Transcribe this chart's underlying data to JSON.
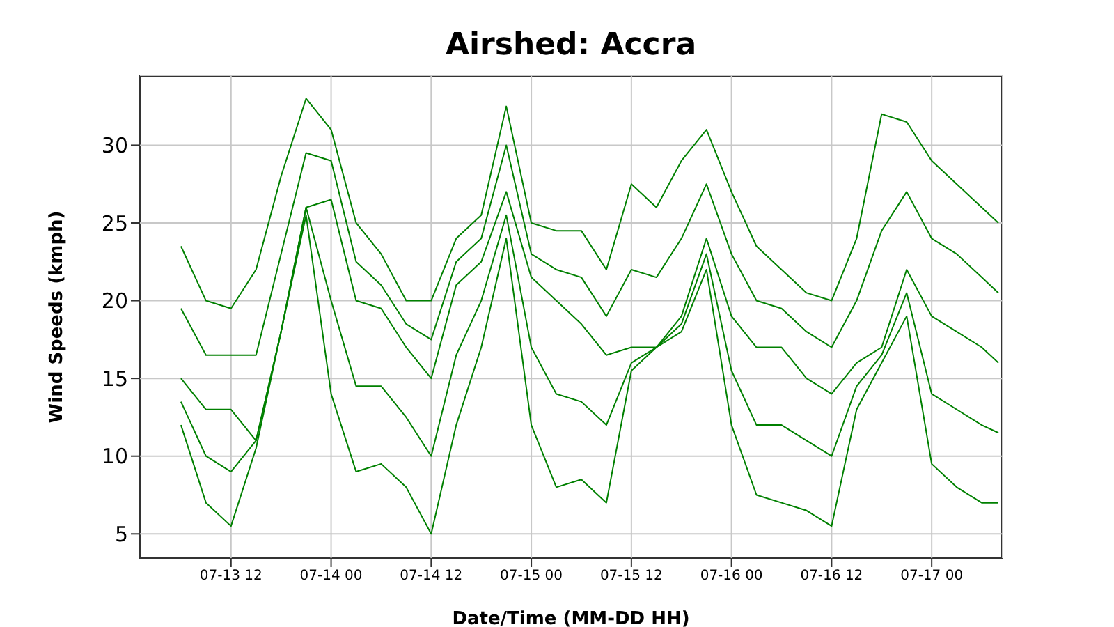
{
  "chart_data": {
    "type": "line",
    "title": "Airshed: Accra",
    "xlabel": "Date/Time (MM-DD HH)",
    "ylabel": "Wind Speeds (kmph)",
    "x": [
      "--07-13T06:00",
      "--07-13T09:00",
      "--07-13T12:00",
      "--07-13T15:00",
      "--07-13T18:00",
      "--07-13T21:00",
      "--07-14T00:00",
      "--07-14T03:00",
      "--07-14T06:00",
      "--07-14T09:00",
      "--07-14T12:00",
      "--07-14T15:00",
      "--07-14T18:00",
      "--07-14T21:00",
      "--07-15T00:00",
      "--07-15T03:00",
      "--07-15T06:00",
      "--07-15T09:00",
      "--07-15T12:00",
      "--07-15T15:00",
      "--07-15T18:00",
      "--07-15T21:00",
      "--07-16T00:00",
      "--07-16T03:00",
      "--07-16T06:00",
      "--07-16T09:00",
      "--07-16T12:00",
      "--07-16T15:00",
      "--07-16T18:00",
      "--07-16T21:00",
      "--07-17T00:00",
      "--07-17T03:00",
      "--07-17T06:00",
      "--07-17T08:00"
    ],
    "xlim": [
      "--07-13T01:00",
      "--07-17T08:30"
    ],
    "ylim": [
      3.4,
      34.5
    ],
    "xticks": [
      {
        "value": "--07-13T12:00",
        "label": "07-13 12"
      },
      {
        "value": "--07-14T00:00",
        "label": "07-14 00"
      },
      {
        "value": "--07-14T12:00",
        "label": "07-14 12"
      },
      {
        "value": "--07-15T00:00",
        "label": "07-15 00"
      },
      {
        "value": "--07-15T12:00",
        "label": "07-15 12"
      },
      {
        "value": "--07-16T00:00",
        "label": "07-16 00"
      },
      {
        "value": "--07-16T12:00",
        "label": "07-16 12"
      },
      {
        "value": "--07-17T00:00",
        "label": "07-17 00"
      }
    ],
    "yticks": [
      5,
      10,
      15,
      20,
      25,
      30
    ],
    "grid": true,
    "series": [
      {
        "color": "#008000",
        "values": [
          23.5,
          20,
          19.5,
          22,
          28,
          33,
          31,
          25,
          23,
          20,
          20,
          24,
          25.5,
          32.5,
          25,
          24.5,
          24.5,
          22,
          27.5,
          26,
          29,
          31,
          27,
          23.5,
          22,
          20.5,
          20,
          24,
          32,
          31.5,
          29,
          27.5,
          26,
          25
        ]
      },
      {
        "color": "#008000",
        "values": [
          19.5,
          16.5,
          16.5,
          16.5,
          23,
          29.5,
          29,
          22.5,
          21,
          18.5,
          17.5,
          22.5,
          24,
          30,
          23,
          22,
          21.5,
          19,
          22,
          21.5,
          24,
          27.5,
          23,
          20,
          19.5,
          18,
          17,
          20,
          24.5,
          27,
          24,
          23,
          21.5,
          20.5
        ]
      },
      {
        "color": "#008000",
        "values": [
          15,
          13,
          13,
          11,
          18,
          26,
          26.5,
          20,
          19.5,
          17,
          15,
          21,
          22.5,
          27,
          21.5,
          20,
          18.5,
          16.5,
          17,
          17,
          19,
          24,
          19,
          17,
          17,
          15,
          14,
          16,
          17,
          22,
          19,
          18,
          17,
          16
        ]
      },
      {
        "color": "#008000",
        "values": [
          13.5,
          10,
          9,
          11,
          18,
          26,
          20,
          14.5,
          14.5,
          12.5,
          10,
          16.5,
          20,
          25.5,
          17,
          14,
          13.5,
          12,
          16,
          17,
          18.5,
          23,
          15.5,
          12,
          12,
          11,
          10,
          14.5,
          16.5,
          20.5,
          14,
          13,
          12,
          11.5
        ]
      },
      {
        "color": "#008000",
        "values": [
          12,
          7,
          5.5,
          10.5,
          18,
          25.5,
          14,
          9,
          9.5,
          8,
          5,
          12,
          17,
          24,
          12,
          8,
          8.5,
          7,
          15.5,
          17,
          18,
          22,
          12,
          7.5,
          7,
          6.5,
          5.5,
          13,
          16,
          19,
          9.5,
          8,
          7,
          7
        ]
      }
    ]
  }
}
